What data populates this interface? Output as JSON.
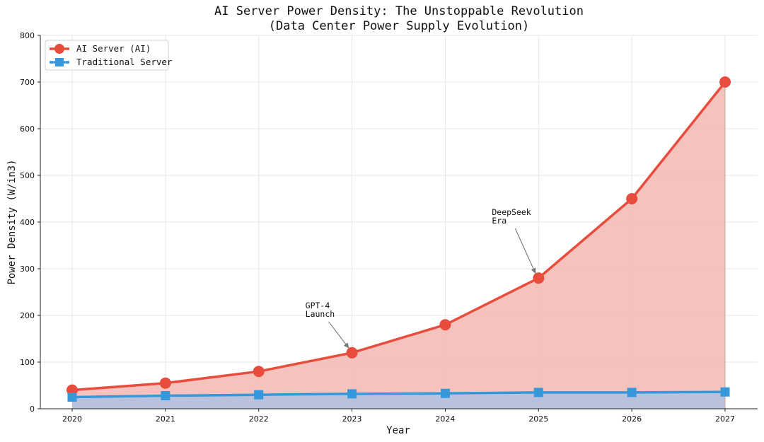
{
  "chart_data": {
    "type": "line",
    "title": "AI Server Power Density: The Unstoppable Revolution",
    "subtitle": "(Data Center Power Supply Evolution)",
    "xlabel": "Year",
    "ylabel": "Power Density (W/in3)",
    "x": [
      2020,
      2021,
      2022,
      2023,
      2024,
      2025,
      2026,
      2027
    ],
    "ylim": [
      0,
      800
    ],
    "yticks": [
      0,
      100,
      200,
      300,
      400,
      500,
      600,
      700,
      800
    ],
    "grid": true,
    "legend_position": "top-left",
    "series": [
      {
        "name": "AI Server (AI)",
        "values": [
          40,
          55,
          80,
          120,
          180,
          280,
          450,
          700
        ],
        "color": "#e74c3c",
        "fill": "#f5b7b1",
        "marker": "circle"
      },
      {
        "name": "Traditional Server",
        "values": [
          25,
          28,
          30,
          32,
          33,
          35,
          35,
          36
        ],
        "color": "#3498db",
        "fill": "#aeb6d6",
        "marker": "square"
      }
    ],
    "annotations": [
      {
        "lines": [
          "GPT-4",
          "Launch"
        ],
        "x": 2023,
        "y": 120,
        "text_x": 2022.5,
        "text_y": 215
      },
      {
        "lines": [
          "DeepSeek",
          "Era"
        ],
        "x": 2025,
        "y": 280,
        "text_x": 2024.5,
        "text_y": 415
      }
    ]
  }
}
